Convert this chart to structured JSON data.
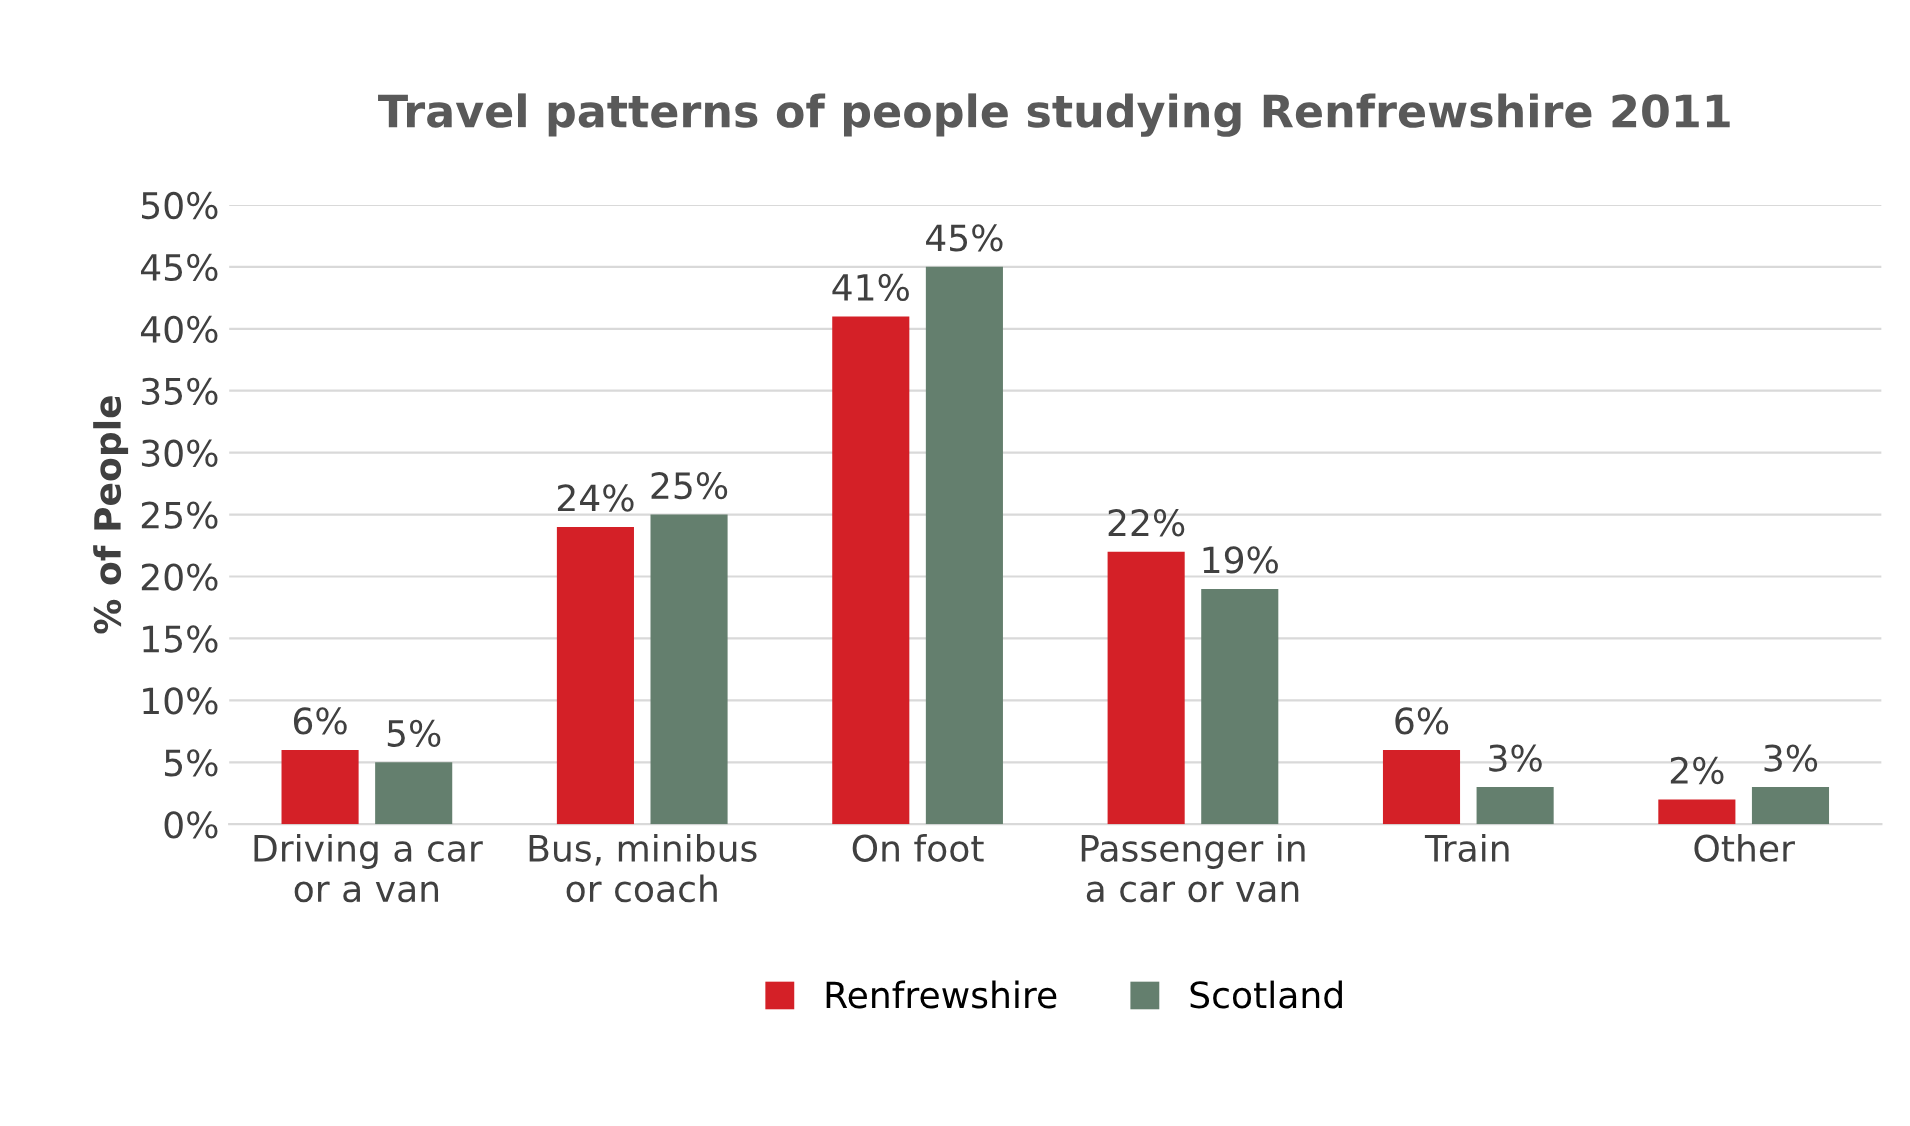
{
  "chart_data": {
    "type": "bar",
    "title": "Travel patterns of people studying Renfrewshire 2011",
    "ylabel": "% of People",
    "categories": [
      "Driving a car\nor a van",
      "Bus, minibus\nor coach",
      "On foot",
      "Passenger in\na car or van",
      "Train",
      "Other"
    ],
    "series": [
      {
        "name": "Renfrewshire",
        "color": "#d42027",
        "values": [
          6,
          24,
          41,
          22,
          6,
          2
        ],
        "value_labels": [
          "6%",
          "24%",
          "41%",
          "22%",
          "6%",
          "2%"
        ]
      },
      {
        "name": "Scotland",
        "color": "#647f6e",
        "values": [
          5,
          25,
          45,
          19,
          3,
          3
        ],
        "value_labels": [
          "5%",
          "25%",
          "45%",
          "19%",
          "3%",
          "3%"
        ]
      }
    ],
    "ylim": [
      0,
      50
    ],
    "yticks": [
      {
        "value": 0,
        "label": "0%"
      },
      {
        "value": 5,
        "label": "5%"
      },
      {
        "value": 10,
        "label": "10%"
      },
      {
        "value": 15,
        "label": "15%"
      },
      {
        "value": 20,
        "label": "20%"
      },
      {
        "value": 25,
        "label": "25%"
      },
      {
        "value": 30,
        "label": "30%"
      },
      {
        "value": 35,
        "label": "35%"
      },
      {
        "value": 40,
        "label": "40%"
      },
      {
        "value": 45,
        "label": "45%"
      },
      {
        "value": 50,
        "label": "50%"
      }
    ],
    "grid": "y",
    "legend": "bottom"
  }
}
